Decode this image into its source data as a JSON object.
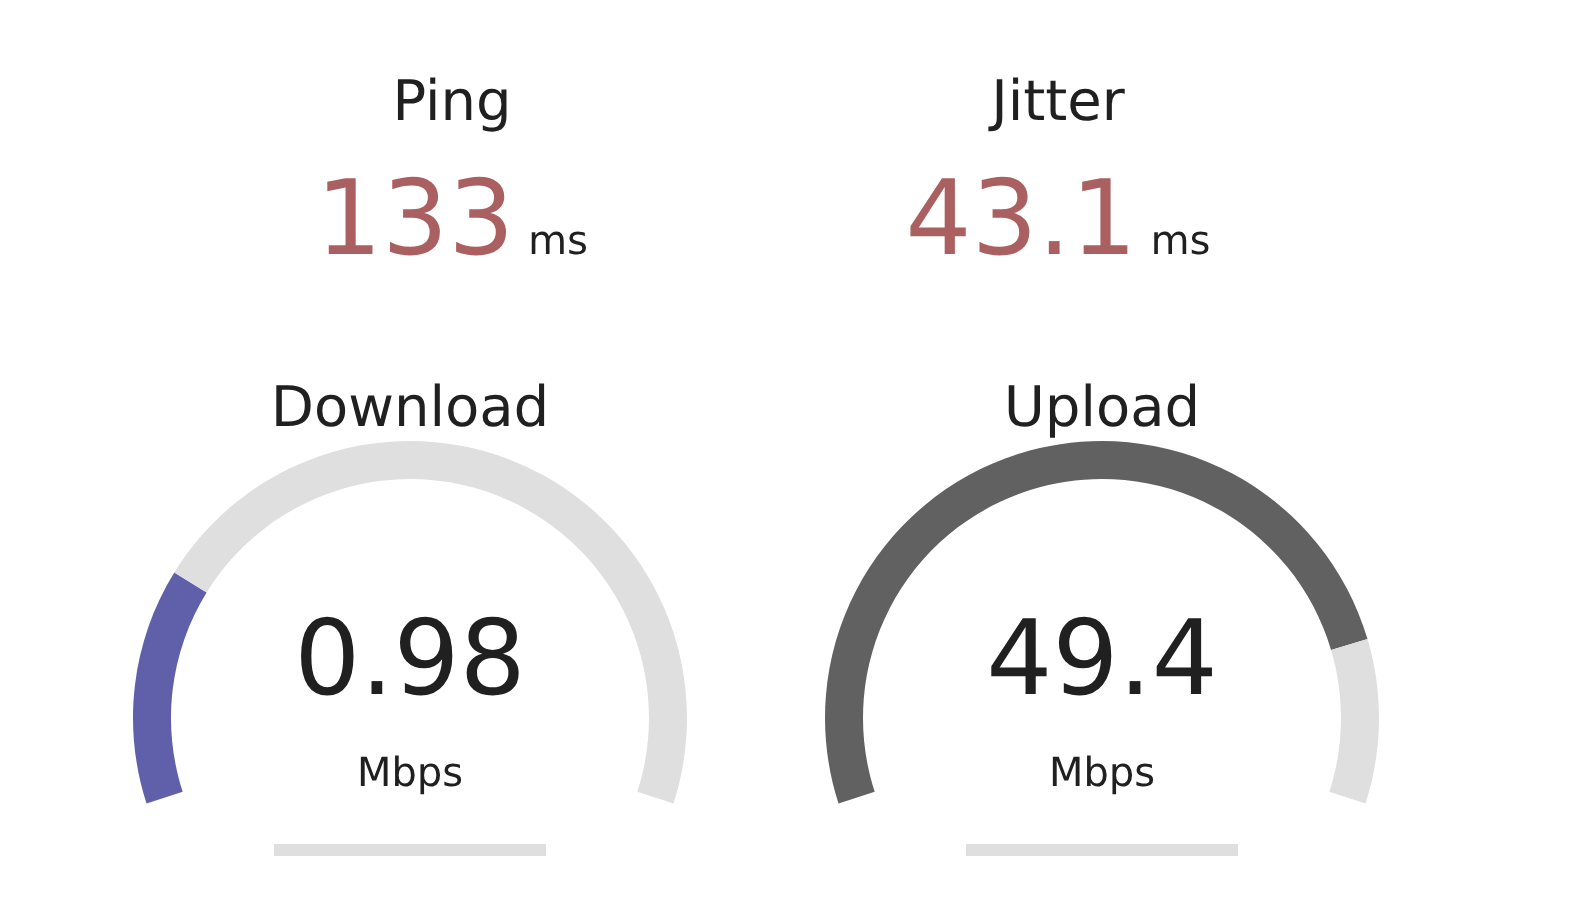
{
  "chart_data": [
    {
      "type": "other",
      "title": "Ping",
      "annotations": [
        "133",
        "ms"
      ]
    },
    {
      "type": "other",
      "title": "Jitter",
      "annotations": [
        "43.1",
        "ms"
      ]
    },
    {
      "type": "donut",
      "title": "Download",
      "categories": [
        null,
        null
      ],
      "values": [
        23,
        77
      ],
      "colors": [
        "#6060aa",
        "#dfdfdf"
      ],
      "annotations": [
        "0.98",
        "Mbps"
      ]
    },
    {
      "type": "donut",
      "title": "Upload",
      "categories": [
        null,
        null
      ],
      "values": [
        84,
        16
      ],
      "colors": [
        "#616161",
        "#dfdfdf"
      ],
      "annotations": [
        "49.4",
        "Mbps"
      ]
    }
  ]
}
